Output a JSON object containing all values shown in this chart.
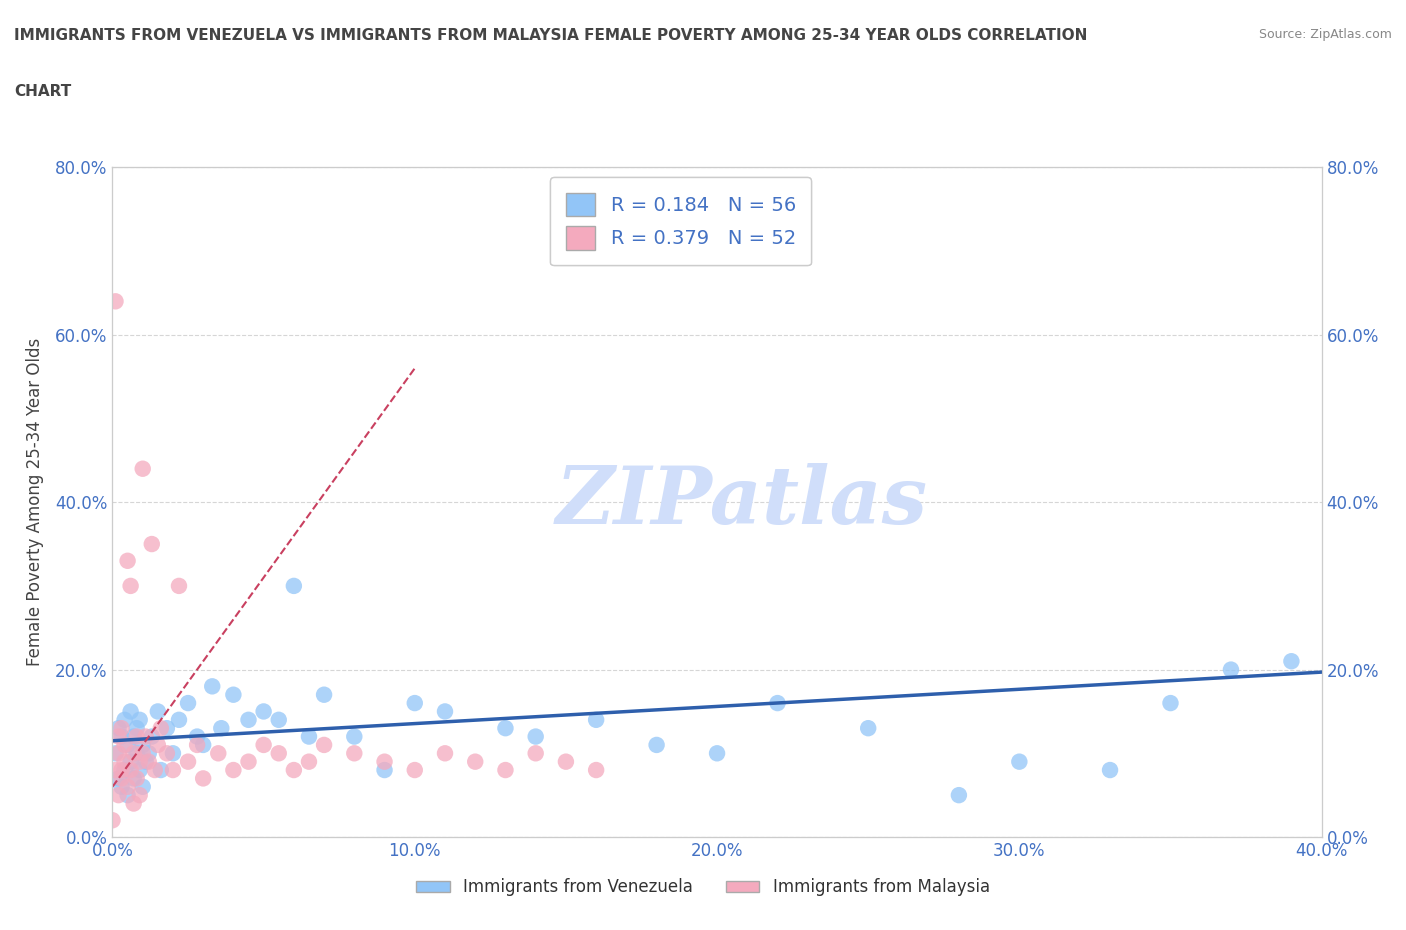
{
  "title_line1": "IMMIGRANTS FROM VENEZUELA VS IMMIGRANTS FROM MALAYSIA FEMALE POVERTY AMONG 25-34 YEAR OLDS CORRELATION",
  "title_line2": "CHART",
  "source": "Source: ZipAtlas.com",
  "ylabel": "Female Poverty Among 25-34 Year Olds",
  "xlim": [
    0.0,
    0.4
  ],
  "ylim": [
    0.0,
    0.8
  ],
  "xticks": [
    0.0,
    0.1,
    0.2,
    0.3,
    0.4
  ],
  "yticks": [
    0.0,
    0.2,
    0.4,
    0.6,
    0.8
  ],
  "xtick_labels": [
    "0.0%",
    "10.0%",
    "20.0%",
    "30.0%",
    "40.0%"
  ],
  "ytick_labels": [
    "0.0%",
    "20.0%",
    "40.0%",
    "60.0%",
    "80.0%"
  ],
  "venezuela_color": "#92C5F7",
  "malaysia_color": "#F4AABE",
  "venezuela_R": 0.184,
  "venezuela_N": 56,
  "malaysia_R": 0.379,
  "malaysia_N": 52,
  "trendline_venezuela_color": "#2E5FAC",
  "trendline_malaysia_color": "#C94060",
  "watermark": "ZIPatlas",
  "watermark_color": "#D0DEFA",
  "legend_label_venezuela": "Immigrants from Venezuela",
  "legend_label_malaysia": "Immigrants from Malaysia",
  "venezuela_x": [
    0.001,
    0.002,
    0.002,
    0.003,
    0.003,
    0.004,
    0.004,
    0.005,
    0.005,
    0.006,
    0.006,
    0.007,
    0.007,
    0.008,
    0.008,
    0.009,
    0.009,
    0.01,
    0.01,
    0.011,
    0.012,
    0.013,
    0.015,
    0.016,
    0.018,
    0.02,
    0.022,
    0.025,
    0.028,
    0.03,
    0.033,
    0.036,
    0.04,
    0.045,
    0.05,
    0.055,
    0.06,
    0.065,
    0.07,
    0.08,
    0.09,
    0.1,
    0.11,
    0.13,
    0.14,
    0.16,
    0.18,
    0.2,
    0.22,
    0.25,
    0.28,
    0.3,
    0.33,
    0.35,
    0.37,
    0.39
  ],
  "venezuela_y": [
    0.1,
    0.13,
    0.07,
    0.12,
    0.06,
    0.14,
    0.08,
    0.11,
    0.05,
    0.09,
    0.15,
    0.07,
    0.12,
    0.1,
    0.13,
    0.08,
    0.14,
    0.06,
    0.11,
    0.09,
    0.1,
    0.12,
    0.15,
    0.08,
    0.13,
    0.1,
    0.14,
    0.16,
    0.12,
    0.11,
    0.18,
    0.13,
    0.17,
    0.14,
    0.15,
    0.14,
    0.3,
    0.12,
    0.17,
    0.12,
    0.08,
    0.16,
    0.15,
    0.13,
    0.12,
    0.14,
    0.11,
    0.1,
    0.16,
    0.13,
    0.05,
    0.09,
    0.08,
    0.16,
    0.2,
    0.21
  ],
  "malaysia_x": [
    0.001,
    0.001,
    0.002,
    0.002,
    0.002,
    0.003,
    0.003,
    0.003,
    0.004,
    0.004,
    0.005,
    0.005,
    0.006,
    0.006,
    0.007,
    0.007,
    0.008,
    0.008,
    0.009,
    0.009,
    0.01,
    0.01,
    0.011,
    0.012,
    0.013,
    0.014,
    0.015,
    0.016,
    0.018,
    0.02,
    0.022,
    0.025,
    0.028,
    0.03,
    0.035,
    0.04,
    0.045,
    0.05,
    0.055,
    0.06,
    0.065,
    0.07,
    0.08,
    0.09,
    0.1,
    0.11,
    0.12,
    0.13,
    0.14,
    0.15,
    0.16,
    0.0
  ],
  "malaysia_y": [
    0.64,
    0.08,
    0.1,
    0.05,
    0.12,
    0.08,
    0.13,
    0.07,
    0.09,
    0.11,
    0.33,
    0.06,
    0.3,
    0.08,
    0.1,
    0.04,
    0.12,
    0.07,
    0.09,
    0.05,
    0.44,
    0.1,
    0.12,
    0.09,
    0.35,
    0.08,
    0.11,
    0.13,
    0.1,
    0.08,
    0.3,
    0.09,
    0.11,
    0.07,
    0.1,
    0.08,
    0.09,
    0.11,
    0.1,
    0.08,
    0.09,
    0.11,
    0.1,
    0.09,
    0.08,
    0.1,
    0.09,
    0.08,
    0.1,
    0.09,
    0.08,
    0.02
  ],
  "ven_trendline_x": [
    0.0,
    0.4
  ],
  "ven_trendline_y": [
    0.115,
    0.197
  ],
  "mal_trendline_x": [
    0.0,
    0.1
  ],
  "mal_trendline_y": [
    0.06,
    0.56
  ]
}
